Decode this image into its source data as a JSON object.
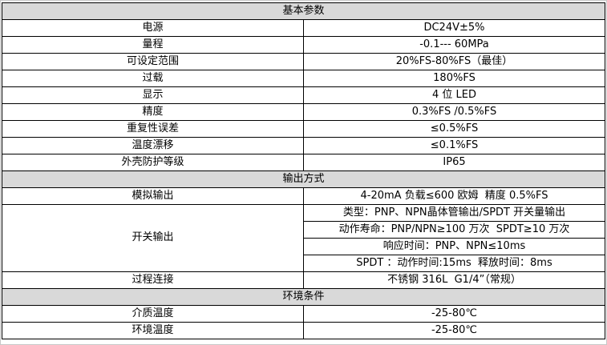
{
  "table": {
    "sections": [
      {
        "header": "基本参数",
        "rows": [
          {
            "label": "电源",
            "value": "DC24V±5%"
          },
          {
            "label": "量程",
            "value": "-0.1--- 60MPa"
          },
          {
            "label": "可设定范围",
            "value": "20%FS-80%FS（最佳）"
          },
          {
            "label": "过载",
            "value": "180%FS"
          },
          {
            "label": "显示",
            "value": "4 位 LED"
          },
          {
            "label": "精度",
            "value": "0.3%FS /0.5%FS"
          },
          {
            "label": "重复性误差",
            "value": "≤0.5%FS"
          },
          {
            "label": "温度漂移",
            "value": "≤0.1%FS"
          },
          {
            "label": "外壳防护等级",
            "value": "IP65"
          }
        ]
      },
      {
        "header": "输出方式",
        "rows": [
          {
            "label": "模拟输出",
            "value": "4-20mA 负载≤600 欧姆  精度 0.5%FS"
          },
          {
            "label": "开关输出",
            "values": [
              "类型：PNP、NPN晶体管输出/SPDT 开关量输出",
              "动作寿命：PNP/NPN≥100 万次  SPDT≥10 万次",
              "响应时间：PNP、NPN≤10ms",
              "SPDT ：动作时间:15ms  释放时间：8ms"
            ]
          },
          {
            "label": "过程连接",
            "value": "不锈钢 316L  G1/4”（常规）"
          }
        ]
      },
      {
        "header": "环境条件",
        "rows": [
          {
            "label": "介质温度",
            "value": "-25-80℃"
          },
          {
            "label": "环境温度",
            "value": "-25-80℃"
          }
        ]
      }
    ]
  }
}
